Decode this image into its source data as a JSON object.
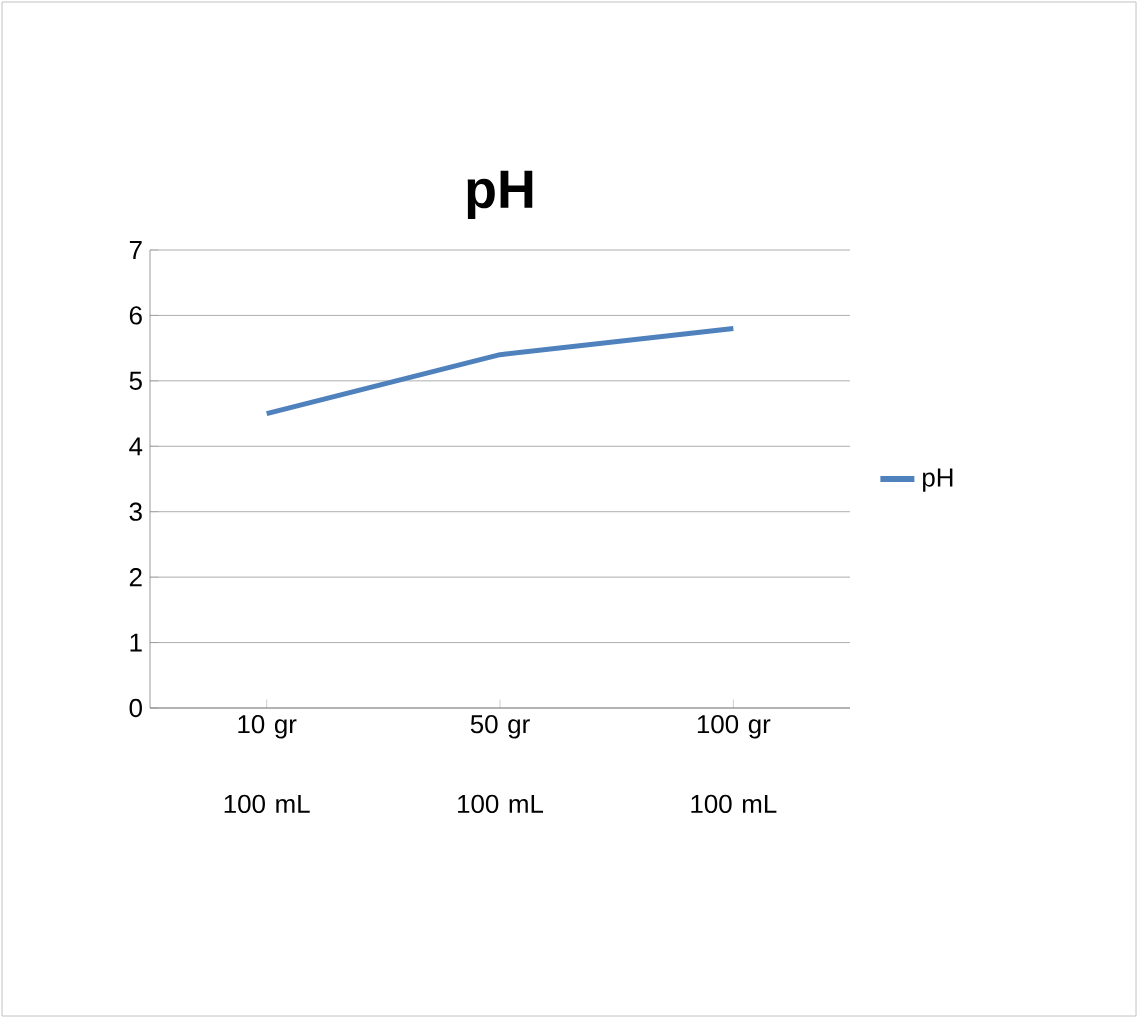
{
  "chart_data": {
    "type": "line",
    "title": "pH",
    "categories": [
      "10 gr 100 mL",
      "50 gr 100 mL",
      "100 gr 100 mL"
    ],
    "series": [
      {
        "name": "pH",
        "color": "#4f81bd",
        "values": [
          4.5,
          5.4,
          5.8
        ]
      }
    ],
    "ylim": [
      0,
      7
    ],
    "yticks": [
      0,
      1,
      2,
      3,
      4,
      5,
      6,
      7
    ],
    "grid": "y",
    "legend": "right",
    "marker": "none",
    "line_style": "solid"
  }
}
